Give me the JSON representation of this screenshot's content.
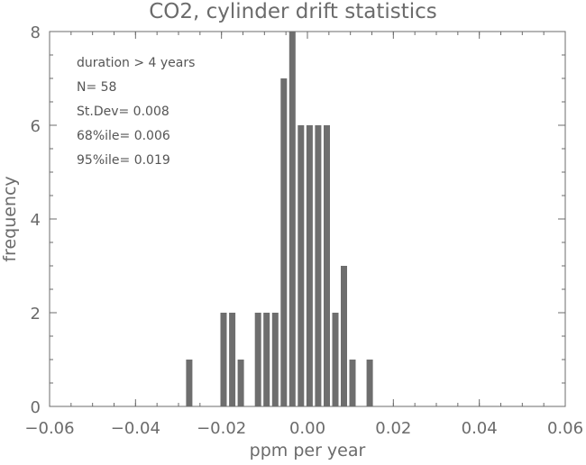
{
  "chart_data": {
    "type": "bar",
    "title": "CO2, cylinder drift statistics",
    "xlabel": "ppm per year",
    "ylabel": "frequency",
    "xlim": [
      -0.06,
      0.06
    ],
    "ylim": [
      0,
      8
    ],
    "bar_color": "#6e6e6e",
    "axis_color": "#6b6b6b",
    "x_ticks": [
      -0.06,
      -0.04,
      -0.02,
      0.0,
      0.02,
      0.04,
      0.06
    ],
    "x_tick_labels": [
      "−0.06",
      "−0.04",
      "−0.02",
      "0.00",
      "0.02",
      "0.04",
      "0.06"
    ],
    "y_ticks": [
      0,
      2,
      4,
      6,
      8
    ],
    "y_tick_labels": [
      "0",
      "2",
      "4",
      "6",
      "8"
    ],
    "annotations": [
      "duration > 4 years",
      "N= 58",
      "St.Dev= 0.008",
      "68%ile= 0.006",
      "95%ile= 0.019"
    ],
    "bins": [
      {
        "x": -0.0275,
        "value": 1
      },
      {
        "x": -0.0195,
        "value": 2
      },
      {
        "x": -0.0175,
        "value": 2
      },
      {
        "x": -0.0155,
        "value": 1
      },
      {
        "x": -0.0115,
        "value": 2
      },
      {
        "x": -0.0095,
        "value": 2
      },
      {
        "x": -0.0075,
        "value": 2
      },
      {
        "x": -0.0055,
        "value": 7
      },
      {
        "x": -0.0035,
        "value": 8
      },
      {
        "x": -0.0015,
        "value": 6
      },
      {
        "x": 0.0005,
        "value": 6
      },
      {
        "x": 0.0025,
        "value": 6
      },
      {
        "x": 0.0045,
        "value": 6
      },
      {
        "x": 0.0065,
        "value": 2
      },
      {
        "x": 0.0085,
        "value": 3
      },
      {
        "x": 0.0105,
        "value": 1
      },
      {
        "x": 0.0145,
        "value": 1
      }
    ]
  }
}
